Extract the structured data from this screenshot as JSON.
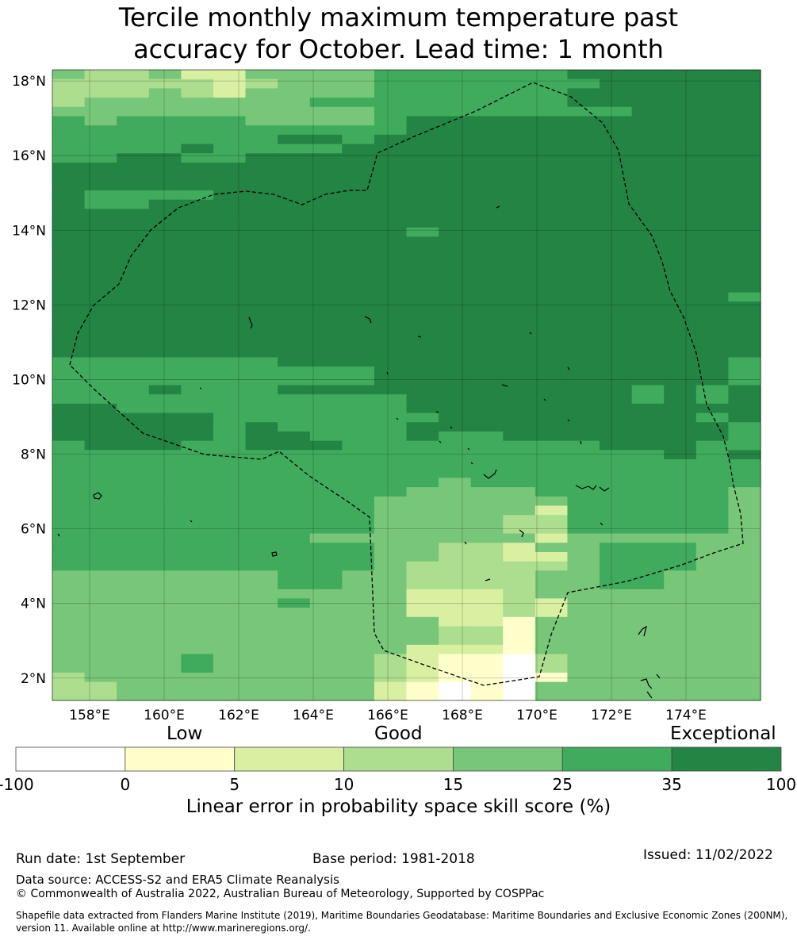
{
  "title": {
    "line1": "Tercile monthly maximum temperature past",
    "line2": "accuracy for October. Lead time: 1 month"
  },
  "map": {
    "lat_labels": [
      "18°N",
      "16°N",
      "14°N",
      "12°N",
      "10°N",
      "8°N",
      "6°N",
      "4°N",
      "2°N"
    ],
    "lat_values": [
      18,
      16,
      14,
      12,
      10,
      8,
      6,
      4,
      2
    ],
    "lon_labels": [
      "158°E",
      "160°E",
      "162°E",
      "164°E",
      "166°E",
      "168°E",
      "170°E",
      "172°E",
      "174°E"
    ],
    "lon_values": [
      158,
      160,
      162,
      164,
      166,
      168,
      170,
      172,
      174
    ],
    "lon_range": [
      157,
      176
    ],
    "lat_range": [
      1.4,
      18.3
    ],
    "cell_colors": {
      "0": "#ffffff",
      "1": "#ffffcc",
      "2": "#d9f0a3",
      "3": "#addd8e",
      "4": "#78c679",
      "5": "#41ab5d",
      "6": "#238443"
    },
    "grid_rows_north_to_south": [
      "4334224444555555666666",
      "3333323444555555566666",
      "3334324444555555666666",
      "3444444455555555666666",
      "4444444444555555556666",
      "5455554444566666666666",
      "5555555555566666666666",
      "5555555665666666666666",
      "5555655556666666666666",
      "5566556666666666666666",
      "6666666666666666666666",
      "6666666666666666666666",
      "6666666666666666666666",
      "6555566666666666666666",
      "6556666666666666666666",
      "6666666666666666666666",
      "6666666666666666666666",
      "6666666666656666666666",
      "6666666666666666666666",
      "6666666666666666666666",
      "6666666666666666666666",
      "6666666666666666666666",
      "6666666666666666666666",
      "6666666666666666666666",
      "6666666666666666666665",
      "6666666666666666666666",
      "6666666666666666666666",
      "6666666666666666666666",
      "6666666666666666666666",
      "6666666666666666666666",
      "6666666666666666666666",
      "5555555666666666666665",
      "5555555555666666666665",
      "5555555555666666666665",
      "5556555666666666665656",
      "5555555555566666665656",
      "6655555555566666666666",
      "6666655555556666666656",
      "6666656555566666666665",
      "6666656655565566666665",
      "5666556665555555566655",
      "5555555555555555555656",
      "5555555555555555555555",
      "5555555555555555555555",
      "5555555555554555555555",
      "5555555555544445555554",
      "5555555555444444555554",
      "5555555555444442555554",
      "5555555555444433555554",
      "5555555555444433555554",
      "5555555544444442444444",
      "5555555555443324455544",
      "5555555555443322455544",
      "5555555555433333455544",
      "4444444554433334455444",
      "4444444554433334455444",
      "4444444444422234444444",
      "4444444544422232444444",
      "4444444444422232444444",
      "4444444444442214444444",
      "4444444444443314444444",
      "4444444444443314444444",
      "4444444444422214444444",
      "4444544444321103444444",
      "4444544444321103444444",
      "3444444444321101444444",
      "3344444444210104444444",
      "3344444444210104444444"
    ]
  },
  "colorbar": {
    "headers": {
      "low": "Low",
      "good": "Good",
      "exceptional": "Exceptional"
    },
    "tick_labels": [
      "-100",
      "0",
      "5",
      "10",
      "15",
      "25",
      "35",
      "100"
    ],
    "colors": [
      "#ffffff",
      "#ffffcc",
      "#d9f0a3",
      "#addd8e",
      "#78c679",
      "#41ab5d",
      "#238443"
    ],
    "label": "Linear error in probability space skill score (%)"
  },
  "footer": {
    "run_date": "Run date: 1st September",
    "base_period": "Base period: 1981-2018",
    "issued": "Issued: 11/02/2022",
    "data_source": "Data source: ACCESS-S2 and ERA5 Climate Reanalysis",
    "copyright": "© Commonwealth of Australia 2022, Australian Bureau of Meteorology, Supported by COSPPac",
    "shapefile": "Shapefile data extracted from Flanders Marine Institute (2019), Maritime Boundaries Geodatabase: Maritime Boundaries and Exclusive Economic Zones (200NM), version 11. Available online at http://www.marineregions.org/."
  }
}
